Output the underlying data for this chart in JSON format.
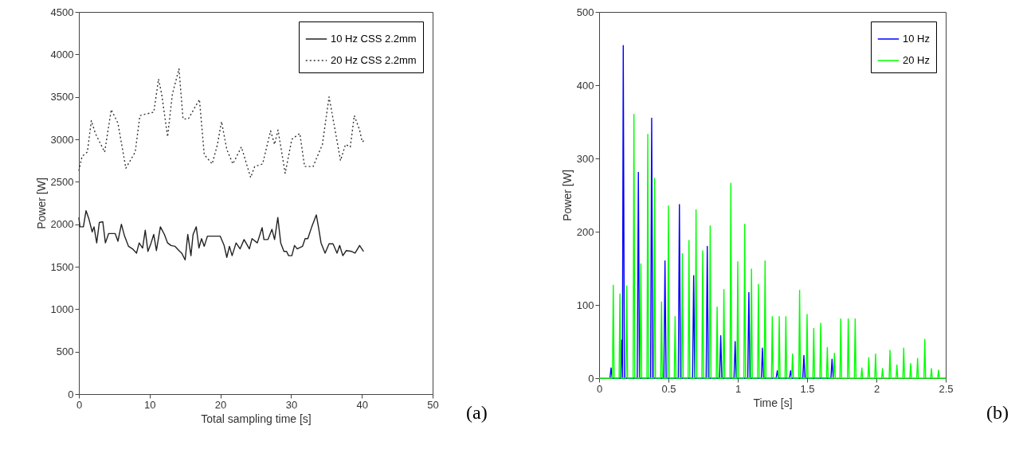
{
  "chart_data": [
    {
      "type": "line",
      "xlabel": "Total sampling time [s]",
      "ylabel": "Power [W]",
      "xlim": [
        0,
        50
      ],
      "xticks": [
        0,
        10,
        20,
        30,
        40,
        50
      ],
      "ylim": [
        0,
        4500
      ],
      "yticks": [
        0,
        500,
        1000,
        1500,
        2000,
        2500,
        3000,
        3500,
        4000,
        4500
      ],
      "grid": false,
      "legend": "top right",
      "annotations": [
        "(a)"
      ],
      "series": [
        {
          "name": "10 Hz CSS 2.2mm",
          "color": "#222222",
          "line_style": "solid",
          "x": [
            0,
            0.15,
            0.64,
            1.01,
            1.39,
            1.88,
            2.14,
            2.52,
            2.89,
            3.38,
            3.75,
            4.2,
            5.14,
            5.52,
            6.01,
            6.46,
            7.02,
            7.58,
            8.15,
            8.52,
            9.01,
            9.38,
            9.76,
            10.21,
            10.58,
            10.96,
            11.52,
            12.09,
            12.54,
            13.03,
            13.59,
            14.15,
            14.53,
            15.02,
            15.39,
            15.84,
            16.14,
            16.59,
            16.97,
            17.34,
            17.72,
            18.17,
            19.97,
            20.53,
            20.91,
            21.28,
            21.66,
            22.22,
            22.79,
            23.35,
            24.1,
            24.47,
            25.22,
            25.9,
            26.16,
            26.73,
            27.29,
            27.66,
            28.12,
            28.53,
            28.98,
            29.35,
            29.65,
            30.1,
            30.48,
            30.86,
            31.61,
            31.98,
            32.36,
            32.92,
            33.56,
            33.86,
            34.23,
            34.8,
            35.36,
            35.92,
            36.49,
            36.86,
            37.31,
            37.8,
            38.55,
            39.04,
            39.68,
            40.24
          ],
          "values": [
            2080,
            1970,
            1970,
            2160,
            2070,
            1910,
            1970,
            1780,
            2020,
            2030,
            1780,
            1890,
            1890,
            1800,
            2000,
            1860,
            1740,
            1710,
            1660,
            1780,
            1720,
            1930,
            1680,
            1780,
            1880,
            1690,
            1970,
            1880,
            1780,
            1750,
            1740,
            1690,
            1660,
            1580,
            1880,
            1630,
            1880,
            1970,
            1720,
            1830,
            1740,
            1860,
            1860,
            1750,
            1610,
            1740,
            1630,
            1780,
            1710,
            1820,
            1710,
            1830,
            1780,
            1960,
            1820,
            1820,
            1940,
            1820,
            2080,
            1780,
            1680,
            1680,
            1630,
            1630,
            1750,
            1710,
            1740,
            1830,
            1830,
            1970,
            2110,
            1970,
            1780,
            1660,
            1770,
            1770,
            1660,
            1750,
            1630,
            1690,
            1680,
            1660,
            1750,
            1680
          ]
        },
        {
          "name": "20 Hz CSS 2.2mm",
          "color": "#333333",
          "line_style": "dotted",
          "x": [
            0,
            0.45,
            1.2,
            1.76,
            2.33,
            3.64,
            4.58,
            5.52,
            6.64,
            7.96,
            8.63,
            10.59,
            11.26,
            11.71,
            12.54,
            13.21,
            14.15,
            14.72,
            15.47,
            17.04,
            17.72,
            18.84,
            19.59,
            20.16,
            20.91,
            21.77,
            22.97,
            24.28,
            24.85,
            25.97,
            27.1,
            27.66,
            28.15,
            29.16,
            30.1,
            31.23,
            31.9,
            33.11,
            34.42,
            35.36,
            36.3,
            36.98,
            37.69,
            38.36,
            38.93,
            39.68,
            40.05,
            40.54
          ],
          "values": [
            2630,
            2800,
            2850,
            3220,
            3070,
            2850,
            3350,
            3190,
            2660,
            2850,
            3280,
            3320,
            3710,
            3530,
            3030,
            3530,
            3830,
            3240,
            3240,
            3470,
            2820,
            2710,
            2940,
            3210,
            2880,
            2710,
            2910,
            2550,
            2680,
            2710,
            3100,
            2940,
            3110,
            2600,
            3000,
            3070,
            2680,
            2680,
            2940,
            3500,
            3070,
            2750,
            2940,
            2910,
            3280,
            3110,
            2970,
            3000
          ]
        }
      ]
    },
    {
      "type": "line",
      "xlabel": "Time [s]",
      "ylabel": "Power [W]",
      "xlim": [
        0,
        2.5
      ],
      "xticks": [
        0,
        0.5,
        1,
        1.5,
        2,
        2.5
      ],
      "ylim": [
        0,
        500
      ],
      "yticks": [
        0,
        100,
        200,
        300,
        400,
        500
      ],
      "grid": false,
      "legend": "top right",
      "annotations": [
        "(b)"
      ],
      "series": [
        {
          "name": "10 Hz",
          "color": "#0000ff",
          "line_style": "solid",
          "x": [
            0.078,
            0.086,
            0.094,
            0.155,
            0.163,
            0.168,
            0.174,
            0.182,
            0.275,
            0.283,
            0.291,
            0.371,
            0.379,
            0.387,
            0.467,
            0.475,
            0.483,
            0.571,
            0.579,
            0.587,
            0.674,
            0.682,
            0.69,
            0.772,
            0.78,
            0.788,
            0.869,
            0.877,
            0.885,
            0.973,
            0.981,
            0.989,
            1.072,
            1.08,
            1.088,
            1.17,
            1.178,
            1.186,
            1.277,
            1.285,
            1.293,
            1.373,
            1.381,
            1.389,
            1.469,
            1.477,
            1.485,
            1.672,
            1.68,
            1.688
          ],
          "values": [
            0,
            14,
            0,
            0,
            52,
            0,
            454,
            0,
            0,
            281,
            0,
            0,
            355,
            0,
            0,
            160,
            0,
            0,
            237,
            0,
            0,
            140,
            0,
            0,
            180,
            0,
            0,
            58,
            0,
            0,
            50,
            0,
            0,
            117,
            0,
            0,
            41,
            0,
            0,
            10,
            0,
            0,
            10,
            0,
            0,
            31,
            0,
            0,
            26,
            0
          ]
        },
        {
          "name": "20 Hz",
          "color": "#00ff00",
          "line_style": "solid",
          "x": [
            0,
            0.096,
            0.102,
            0.108,
            0.144,
            0.15,
            0.156,
            0.193,
            0.199,
            0.205,
            0.245,
            0.251,
            0.257,
            0.295,
            0.301,
            0.307,
            0.345,
            0.351,
            0.357,
            0.394,
            0.4,
            0.406,
            0.444,
            0.45,
            0.456,
            0.494,
            0.5,
            0.506,
            0.542,
            0.548,
            0.554,
            0.594,
            0.6,
            0.606,
            0.642,
            0.648,
            0.654,
            0.693,
            0.699,
            0.705,
            0.741,
            0.747,
            0.753,
            0.795,
            0.801,
            0.807,
            0.845,
            0.851,
            0.857,
            0.894,
            0.9,
            0.906,
            0.944,
            0.95,
            0.956,
            0.994,
            1,
            1.006,
            1.044,
            1.05,
            1.056,
            1.093,
            1.099,
            1.105,
            1.143,
            1.149,
            1.155,
            1.191,
            1.197,
            1.203,
            1.243,
            1.249,
            1.255,
            1.293,
            1.299,
            1.305,
            1.341,
            1.347,
            1.353,
            1.389,
            1.395,
            1.401,
            1.44,
            1.446,
            1.452,
            1.494,
            1.5,
            1.506,
            1.542,
            1.548,
            1.554,
            1.592,
            1.598,
            1.604,
            1.64,
            1.646,
            1.652,
            1.691,
            1.697,
            1.703,
            1.737,
            1.743,
            1.749,
            1.791,
            1.797,
            1.803,
            1.841,
            1.847,
            1.853,
            1.889,
            1.895,
            1.901,
            1.939,
            1.945,
            1.951,
            1.988,
            1.994,
            2,
            2.038,
            2.044,
            2.05,
            2.092,
            2.098,
            2.104,
            2.142,
            2.148,
            2.154,
            2.191,
            2.197,
            2.203,
            2.241,
            2.247,
            2.253,
            2.291,
            2.297,
            2.303,
            2.343,
            2.349,
            2.355,
            2.391,
            2.397,
            2.403,
            2.442,
            2.448,
            2.454,
            2.5
          ],
          "values": [
            0,
            0,
            127,
            0,
            0,
            115,
            0,
            0,
            126,
            0,
            0,
            360,
            0,
            0,
            156,
            0,
            0,
            333,
            0,
            0,
            273,
            0,
            0,
            104,
            0,
            0,
            235,
            0,
            0,
            84,
            0,
            0,
            170,
            0,
            0,
            188,
            0,
            0,
            230,
            0,
            0,
            174,
            0,
            0,
            208,
            0,
            0,
            97,
            0,
            0,
            121,
            0,
            0,
            266,
            0,
            0,
            159,
            0,
            0,
            210,
            0,
            0,
            149,
            0,
            0,
            128,
            0,
            0,
            160,
            0,
            0,
            84,
            0,
            0,
            84,
            0,
            0,
            84,
            0,
            0,
            33,
            0,
            0,
            120,
            0,
            0,
            87,
            0,
            0,
            68,
            0,
            0,
            75,
            0,
            0,
            42,
            0,
            0,
            34,
            0,
            0,
            81,
            0,
            0,
            81,
            0,
            0,
            81,
            0,
            0,
            14,
            0,
            0,
            28,
            0,
            0,
            33,
            0,
            0,
            13,
            0,
            0,
            38,
            0,
            0,
            18,
            0,
            0,
            41,
            0,
            0,
            20,
            0,
            0,
            27,
            0,
            0,
            53,
            0,
            0,
            13,
            0,
            0,
            11,
            0,
            0
          ]
        }
      ]
    }
  ]
}
